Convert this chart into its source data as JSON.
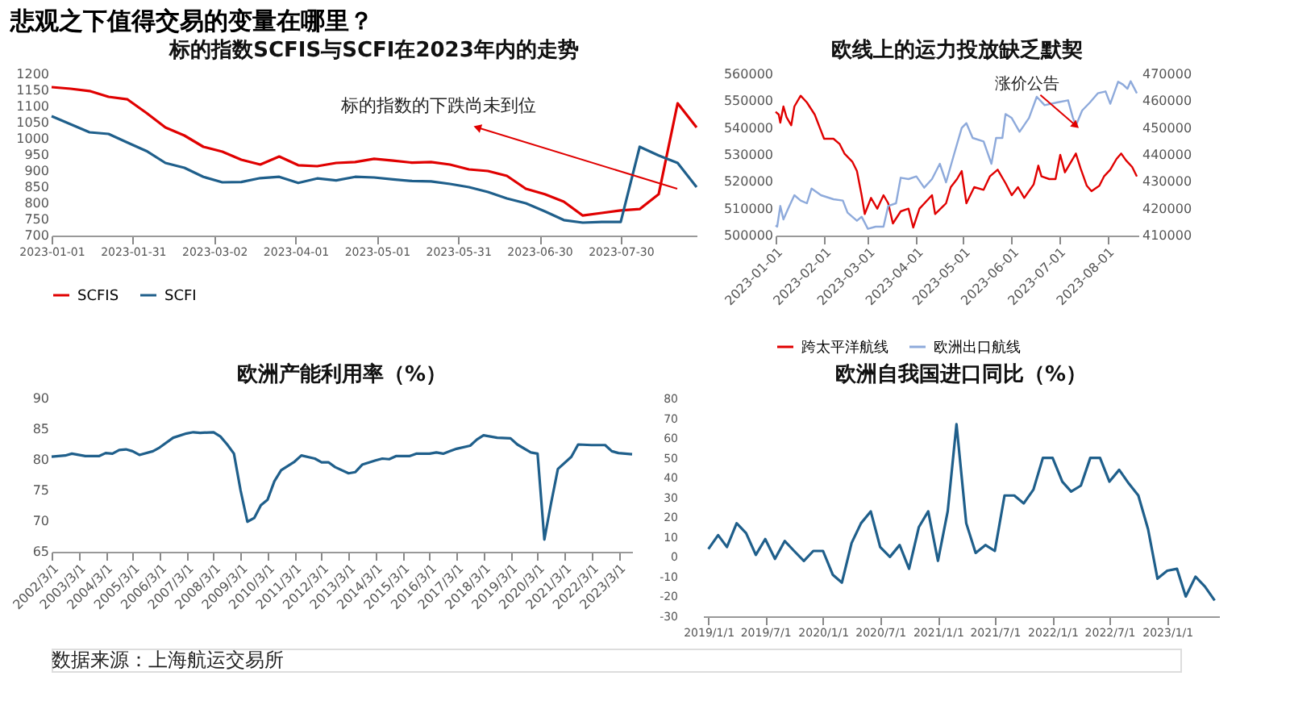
{
  "chart_data": [
    {
      "type": "line",
      "title": "标的指数SCFIS与SCFI在2023年内的走势",
      "grid": false,
      "legend": "bottom",
      "marker": "none",
      "line_style": "solid",
      "x": [
        "2023-01-01",
        "2023-01-08",
        "2023-01-15",
        "2023-01-22",
        "2023-01-29",
        "2023-02-05",
        "2023-02-12",
        "2023-02-19",
        "2023-02-26",
        "2023-03-05",
        "2023-03-12",
        "2023-03-19",
        "2023-03-26",
        "2023-04-02",
        "2023-04-09",
        "2023-04-16",
        "2023-04-23",
        "2023-04-30",
        "2023-05-07",
        "2023-05-14",
        "2023-05-21",
        "2023-05-28",
        "2023-06-04",
        "2023-06-11",
        "2023-06-18",
        "2023-06-25",
        "2023-07-02",
        "2023-07-09",
        "2023-07-16",
        "2023-07-23",
        "2023-07-30",
        "2023-08-06",
        "2023-08-13",
        "2023-08-20",
        "2023-08-27"
      ],
      "series": [
        {
          "name": "SCFIS",
          "color": "#e00000",
          "values": [
            1160,
            1155,
            1148,
            1130,
            1122,
            1080,
            1035,
            1010,
            975,
            960,
            935,
            920,
            945,
            918,
            915,
            925,
            928,
            938,
            932,
            926,
            928,
            920,
            905,
            900,
            885,
            845,
            828,
            805,
            762,
            770,
            778,
            782,
            828,
            1110,
            1035
          ]
        },
        {
          "name": "SCFI",
          "color": "#1f5f8b",
          "values": [
            1070,
            1045,
            1020,
            1015,
            988,
            962,
            925,
            910,
            882,
            865,
            866,
            878,
            882,
            863,
            877,
            871,
            882,
            880,
            874,
            869,
            868,
            860,
            850,
            835,
            815,
            800,
            775,
            748,
            740,
            742,
            742,
            975,
            948,
            925,
            850
          ]
        }
      ],
      "xlim": [
        "2023-01-01",
        "2023-08-27"
      ],
      "xticks": [
        {
          "value": "2023-01-01",
          "label": "2023-01-01"
        },
        {
          "value": "2023-01-31",
          "label": "2023-01-31"
        },
        {
          "value": "2023-03-02",
          "label": "2023-03-02"
        },
        {
          "value": "2023-04-01",
          "label": "2023-04-01"
        },
        {
          "value": "2023-05-01",
          "label": "2023-05-01"
        },
        {
          "value": "2023-05-31",
          "label": "2023-05-31"
        },
        {
          "value": "2023-06-30",
          "label": "2023-06-30"
        },
        {
          "value": "2023-07-30",
          "label": "2023-07-30"
        }
      ],
      "ylim": [
        700,
        1200
      ],
      "yticks": [
        700,
        750,
        800,
        850,
        900,
        950,
        1000,
        1050,
        1100,
        1150,
        1200
      ],
      "annotations": [
        "标的指数的下跌尚未到位"
      ]
    },
    {
      "type": "line",
      "title": "欧线上的运力投放缺乏默契",
      "grid": false,
      "legend": "bottom",
      "marker": "none",
      "line_style": "solid",
      "series": [
        {
          "name": "跨太平洋航线",
          "color": "#e00000",
          "x": [
            "2023-01-01",
            "2023-01-03",
            "2023-01-04",
            "2023-01-06",
            "2023-01-08",
            "2023-01-11",
            "2023-01-13",
            "2023-01-17",
            "2023-01-21",
            "2023-01-26",
            "2023-02-01",
            "2023-02-07",
            "2023-02-11",
            "2023-02-14",
            "2023-02-19",
            "2023-02-22",
            "2023-02-25",
            "2023-02-27",
            "2023-03-03",
            "2023-03-07",
            "2023-03-11",
            "2023-03-14",
            "2023-03-17",
            "2023-03-22",
            "2023-03-27",
            "2023-03-30",
            "2023-04-03",
            "2023-04-11",
            "2023-04-13",
            "2023-04-20",
            "2023-04-23",
            "2023-04-27",
            "2023-04-30",
            "2023-05-03",
            "2023-05-08",
            "2023-05-14",
            "2023-05-18",
            "2023-05-23",
            "2023-05-28",
            "2023-06-01",
            "2023-06-05",
            "2023-06-09",
            "2023-06-15",
            "2023-06-18",
            "2023-06-20",
            "2023-06-25",
            "2023-06-29",
            "2023-07-02",
            "2023-07-05",
            "2023-07-12",
            "2023-07-15",
            "2023-07-19",
            "2023-07-22",
            "2023-07-27",
            "2023-07-30",
            "2023-08-03",
            "2023-08-07",
            "2023-08-10",
            "2023-08-13",
            "2023-08-17",
            "2023-08-20"
          ],
          "values": [
            546000,
            545000,
            542000,
            548000,
            544000,
            541000,
            548000,
            552000,
            549500,
            545000,
            536000,
            536000,
            534000,
            530500,
            527500,
            524000,
            515000,
            508000,
            514000,
            510000,
            515000,
            512000,
            504500,
            509000,
            510000,
            503000,
            510000,
            515000,
            508000,
            512000,
            518000,
            521000,
            524000,
            512000,
            518000,
            517000,
            522000,
            524500,
            519500,
            515000,
            518000,
            514000,
            519000,
            526000,
            522000,
            521000,
            521000,
            530000,
            523500,
            530500,
            525000,
            518500,
            516500,
            518500,
            522000,
            524500,
            528500,
            530500,
            528000,
            525500,
            522000
          ]
        },
        {
          "name": "欧洲出口航线",
          "color": "#8eaadb",
          "axis": "y2",
          "x": [
            "2023-01-01",
            "2023-01-02",
            "2023-01-04",
            "2023-01-06",
            "2023-01-09",
            "2023-01-13",
            "2023-01-17",
            "2023-01-21",
            "2023-01-24",
            "2023-01-30",
            "2023-02-07",
            "2023-02-13",
            "2023-02-16",
            "2023-02-22",
            "2023-02-25",
            "2023-03-01",
            "2023-03-06",
            "2023-03-11",
            "2023-03-14",
            "2023-03-19",
            "2023-03-22",
            "2023-03-27",
            "2023-04-01",
            "2023-04-06",
            "2023-04-11",
            "2023-04-16",
            "2023-04-20",
            "2023-04-25",
            "2023-04-30",
            "2023-05-03",
            "2023-05-07",
            "2023-05-14",
            "2023-05-19",
            "2023-05-22",
            "2023-05-26",
            "2023-05-28",
            "2023-06-01",
            "2023-06-06",
            "2023-06-12",
            "2023-06-17",
            "2023-06-22",
            "2023-06-30",
            "2023-07-07",
            "2023-07-10",
            "2023-07-12",
            "2023-07-16",
            "2023-07-21",
            "2023-07-26",
            "2023-07-31",
            "2023-08-03",
            "2023-08-08",
            "2023-08-11",
            "2023-08-14",
            "2023-08-16",
            "2023-08-20"
          ],
          "values": [
            413800,
            413300,
            421000,
            416000,
            420000,
            425000,
            423000,
            422000,
            427500,
            425000,
            423500,
            423000,
            418500,
            415500,
            417000,
            412500,
            413300,
            413300,
            421000,
            422000,
            431500,
            431000,
            432000,
            427800,
            431000,
            436700,
            429800,
            440000,
            450000,
            451800,
            446300,
            445000,
            436700,
            446300,
            446300,
            455200,
            453700,
            448600,
            453700,
            461600,
            458500,
            459500,
            460300,
            454000,
            450900,
            456500,
            459500,
            462900,
            463600,
            459000,
            467200,
            466200,
            464600,
            467400,
            462900
          ]
        }
      ],
      "xlim": [
        "2023-01-01",
        "2023-08-21"
      ],
      "xticks": [
        {
          "value": "2023-01-01",
          "label": "2023-01-01"
        },
        {
          "value": "2023-02-01",
          "label": "2023-02-01"
        },
        {
          "value": "2023-03-01",
          "label": "2023-03-01"
        },
        {
          "value": "2023-04-01",
          "label": "2023-04-01"
        },
        {
          "value": "2023-05-01",
          "label": "2023-05-01"
        },
        {
          "value": "2023-06-01",
          "label": "2023-06-01"
        },
        {
          "value": "2023-07-01",
          "label": "2023-07-01"
        },
        {
          "value": "2023-08-01",
          "label": "2023-08-01"
        }
      ],
      "ylim": [
        500000,
        560000
      ],
      "yticks": [
        500000,
        510000,
        520000,
        530000,
        540000,
        550000,
        560000
      ],
      "y2lim": [
        410000,
        470000
      ],
      "y2ticks": [
        410000,
        420000,
        430000,
        440000,
        450000,
        460000,
        470000
      ],
      "annotations": [
        {
          "text": "涨价公告",
          "x": "2023-07-12",
          "y": 540900
        }
      ]
    },
    {
      "type": "line",
      "title": "欧洲产能利用率（%）",
      "grid": false,
      "marker": "none",
      "line_style": "solid",
      "series": [
        {
          "color": "#1f5f8b",
          "x": [
            "2002-03-01",
            "2002-09-01",
            "2002-12-01",
            "2003-06-01",
            "2003-12-01",
            "2004-03-01",
            "2004-06-01",
            "2004-09-01",
            "2004-12-01",
            "2005-03-01",
            "2005-06-01",
            "2005-12-01",
            "2006-03-01",
            "2006-09-01",
            "2007-03-01",
            "2007-06-01",
            "2007-09-01",
            "2008-03-01",
            "2008-06-01",
            "2008-09-01",
            "2008-12-01",
            "2009-03-01",
            "2009-06-01",
            "2009-09-01",
            "2009-12-01",
            "2010-03-01",
            "2010-06-01",
            "2010-09-01",
            "2011-03-01",
            "2011-06-01",
            "2011-12-01",
            "2012-03-01",
            "2012-06-01",
            "2012-09-01",
            "2013-03-01",
            "2013-06-01",
            "2013-09-01",
            "2014-03-01",
            "2014-06-01",
            "2014-09-01",
            "2014-12-01",
            "2015-06-01",
            "2015-09-01",
            "2016-03-01",
            "2016-06-01",
            "2016-09-01",
            "2016-12-01",
            "2017-03-01",
            "2017-09-01",
            "2017-12-01",
            "2018-03-01",
            "2018-09-01",
            "2019-03-01",
            "2019-06-01",
            "2019-12-01",
            "2020-03-01",
            "2020-06-01",
            "2020-09-01",
            "2020-12-01",
            "2021-06-01",
            "2021-09-01",
            "2022-03-01",
            "2022-09-01",
            "2022-12-01",
            "2023-03-01",
            "2023-09-01"
          ],
          "values": [
            80.5,
            80.7,
            81.0,
            80.6,
            80.6,
            81.1,
            81.0,
            81.6,
            81.7,
            81.4,
            80.8,
            81.4,
            82.0,
            83.6,
            84.3,
            84.5,
            84.4,
            84.5,
            83.8,
            82.5,
            81.0,
            75.0,
            69.9,
            70.5,
            72.6,
            73.5,
            76.5,
            78.3,
            79.7,
            80.7,
            80.2,
            79.6,
            79.6,
            78.8,
            77.8,
            78.0,
            79.2,
            79.9,
            80.2,
            80.1,
            80.6,
            80.6,
            81.0,
            81.0,
            81.2,
            81.0,
            81.4,
            81.8,
            82.3,
            83.3,
            84.0,
            83.6,
            83.5,
            82.5,
            81.2,
            81.0,
            67.0,
            73.0,
            78.5,
            80.5,
            82.5,
            82.4,
            82.4,
            81.4,
            81.1,
            80.9
          ]
        }
      ],
      "xlim": [
        "2002-03-01",
        "2023-09-01"
      ],
      "xticks": [
        {
          "value": "2002-03-01",
          "label": "2002/3/1"
        },
        {
          "value": "2003-03-01",
          "label": "2003/3/1"
        },
        {
          "value": "2004-03-01",
          "label": "2004/3/1"
        },
        {
          "value": "2005-03-01",
          "label": "2005/3/1"
        },
        {
          "value": "2006-03-01",
          "label": "2006/3/1"
        },
        {
          "value": "2007-03-01",
          "label": "2007/3/1"
        },
        {
          "value": "2008-03-01",
          "label": "2008/3/1"
        },
        {
          "value": "2009-03-01",
          "label": "2009/3/1"
        },
        {
          "value": "2010-03-01",
          "label": "2010/3/1"
        },
        {
          "value": "2011-03-01",
          "label": "2011/3/1"
        },
        {
          "value": "2012-03-01",
          "label": "2012/3/1"
        },
        {
          "value": "2013-03-01",
          "label": "2013/3/1"
        },
        {
          "value": "2014-03-01",
          "label": "2014/3/1"
        },
        {
          "value": "2015-03-01",
          "label": "2015/3/1"
        },
        {
          "value": "2016-03-01",
          "label": "2016/3/1"
        },
        {
          "value": "2017-03-01",
          "label": "2017/3/1"
        },
        {
          "value": "2018-03-01",
          "label": "2018/3/1"
        },
        {
          "value": "2019-03-01",
          "label": "2019/3/1"
        },
        {
          "value": "2020-03-01",
          "label": "2020/3/1"
        },
        {
          "value": "2021-03-01",
          "label": "2021/3/1"
        },
        {
          "value": "2022-03-01",
          "label": "2022/3/1"
        },
        {
          "value": "2023-03-01",
          "label": "2023/3/1"
        }
      ],
      "ylim": [
        65,
        90
      ],
      "yticks": [
        65,
        70,
        75,
        80,
        85,
        90
      ]
    },
    {
      "type": "line",
      "title": "欧洲自我国进口同比（%）",
      "grid": false,
      "marker": "none",
      "line_style": "solid",
      "x": [
        "2019-01-01",
        "2019-02-01",
        "2019-03-01",
        "2019-04-01",
        "2019-05-01",
        "2019-06-01",
        "2019-07-01",
        "2019-08-01",
        "2019-09-01",
        "2019-10-01",
        "2019-11-01",
        "2019-12-01",
        "2020-01-01",
        "2020-02-01",
        "2020-03-01",
        "2020-04-01",
        "2020-05-01",
        "2020-06-01",
        "2020-07-01",
        "2020-08-01",
        "2020-09-01",
        "2020-10-01",
        "2020-11-01",
        "2020-12-01",
        "2021-01-01",
        "2021-02-01",
        "2021-03-01",
        "2021-04-01",
        "2021-05-01",
        "2021-06-01",
        "2021-07-01",
        "2021-08-01",
        "2021-09-01",
        "2021-10-01",
        "2021-11-01",
        "2021-12-01",
        "2022-01-01",
        "2022-02-01",
        "2022-03-01",
        "2022-04-01",
        "2022-05-01",
        "2022-06-01",
        "2022-07-01",
        "2022-08-01",
        "2022-09-01",
        "2022-10-01",
        "2022-11-01",
        "2022-12-01",
        "2023-01-01",
        "2023-02-01",
        "2023-03-01",
        "2023-04-01",
        "2023-05-01",
        "2023-06-01"
      ],
      "series": [
        {
          "color": "#1f5f8b",
          "values": [
            4,
            11,
            5,
            17,
            12,
            1,
            9,
            -1,
            8,
            3,
            -2,
            3,
            3,
            -9,
            -13,
            7,
            17,
            23,
            5,
            0,
            6,
            -6,
            15,
            23,
            -2,
            23,
            67,
            17,
            2,
            6,
            3,
            31,
            31,
            27,
            34,
            50,
            50,
            38,
            33,
            36,
            50,
            50,
            38,
            44,
            37,
            31,
            14,
            -11,
            -7,
            -6,
            -20,
            -10,
            -15,
            -22
          ]
        }
      ],
      "xlim": [
        "2018-12-15",
        "2023-06-15"
      ],
      "xticks": [
        {
          "value": "2019-01-01",
          "label": "2019/1/1"
        },
        {
          "value": "2019-07-01",
          "label": "2019/7/1"
        },
        {
          "value": "2020-01-01",
          "label": "2020/1/1"
        },
        {
          "value": "2020-07-01",
          "label": "2020/7/1"
        },
        {
          "value": "2021-01-01",
          "label": "2021/1/1"
        },
        {
          "value": "2021-07-01",
          "label": "2021/7/1"
        },
        {
          "value": "2022-01-01",
          "label": "2022/1/1"
        },
        {
          "value": "2022-07-01",
          "label": "2022/7/1"
        },
        {
          "value": "2023-01-01",
          "label": "2023/1/1"
        }
      ],
      "ylim": [
        -30,
        80
      ],
      "yticks": [
        -30,
        -20,
        -10,
        0,
        10,
        20,
        30,
        40,
        50,
        60,
        70,
        80
      ]
    },
    {
      "type": "other",
      "title": "悲观之下值得交易的变量在哪里？",
      "annotations": [
        "数据来源：上海航运交易所"
      ]
    }
  ]
}
